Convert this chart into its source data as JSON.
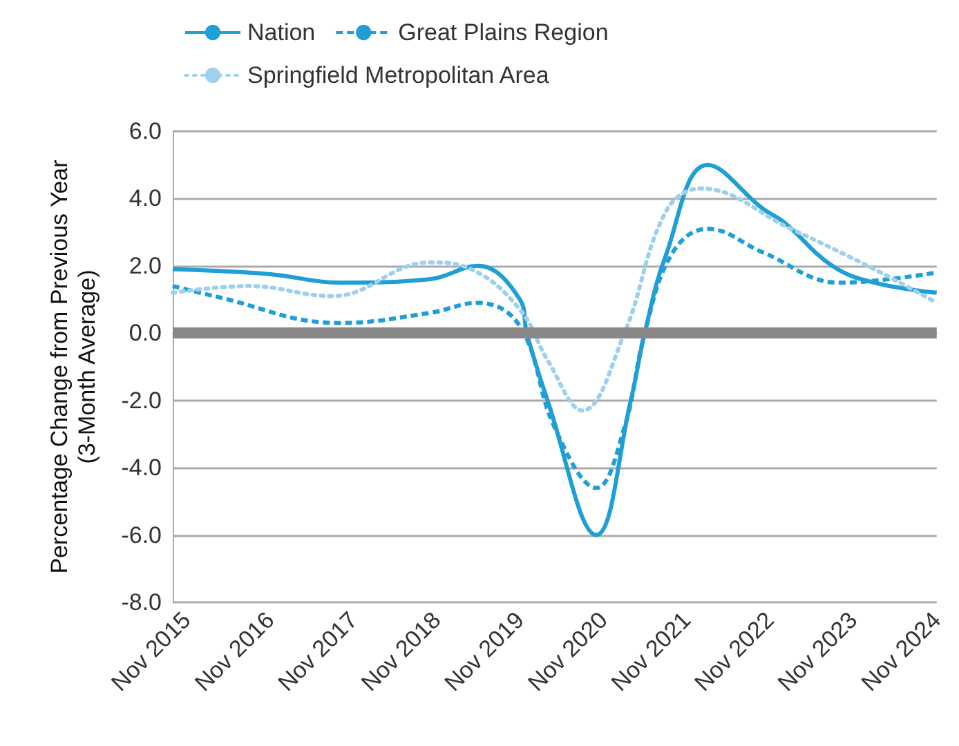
{
  "chart_data": {
    "type": "line",
    "ylabel": "Percentage Change from Previous Year\n(3-Month Average)",
    "xlim": [
      "2015-09",
      "2024-11"
    ],
    "xticks": [
      {
        "value": "2015-11",
        "label": "Nov 2015"
      },
      {
        "value": "2016-11",
        "label": "Nov 2016"
      },
      {
        "value": "2017-11",
        "label": "Nov 2017"
      },
      {
        "value": "2018-11",
        "label": "Nov 2018"
      },
      {
        "value": "2019-11",
        "label": "Nov 2019"
      },
      {
        "value": "2020-11",
        "label": "Nov 2020"
      },
      {
        "value": "2021-11",
        "label": "Nov 2021"
      },
      {
        "value": "2022-11",
        "label": "Nov 2022"
      },
      {
        "value": "2023-11",
        "label": "Nov 2023"
      },
      {
        "value": "2024-11",
        "label": "Nov 2024"
      }
    ],
    "ylim": [
      -8,
      6
    ],
    "yticks": [
      {
        "value": -8,
        "label": "-8.0"
      },
      {
        "value": -6,
        "label": "-6.0"
      },
      {
        "value": -4,
        "label": "-4.0"
      },
      {
        "value": -2,
        "label": "-2.0"
      },
      {
        "value": 0,
        "label": "0.0"
      },
      {
        "value": 2,
        "label": "2.0"
      },
      {
        "value": 4,
        "label": "4.0"
      },
      {
        "value": 6,
        "label": "6.0"
      }
    ],
    "grid": "y",
    "legend": "top",
    "marker": "none",
    "ref_lines": [
      {
        "axis": "y",
        "value": 0,
        "color": "#888888"
      }
    ],
    "series": [
      {
        "name": "Nation",
        "color": "#1f9fd5",
        "line_style": "solid",
        "x": [
          "2015-09",
          "2016-11",
          "2017-09",
          "2018-10",
          "2019-05",
          "2019-11",
          "2019-12",
          "2020-03",
          "2020-10",
          "2021-03",
          "2021-05",
          "2021-08",
          "2022-02",
          "2022-10",
          "2023-01",
          "2023-08",
          "2024-02",
          "2024-11"
        ],
        "values": [
          1.9,
          1.75,
          1.5,
          1.6,
          2.0,
          1.0,
          0.0,
          -2.0,
          -6.0,
          -2.0,
          0.0,
          2.3,
          5.0,
          3.7,
          3.3,
          2.0,
          1.5,
          1.2
        ]
      },
      {
        "name": "Great Plains Region",
        "color": "#1f9fd5",
        "line_style": "dashed",
        "x": [
          "2015-09",
          "2016-03",
          "2017-09",
          "2018-10",
          "2019-05",
          "2019-11",
          "2020-04",
          "2020-10",
          "2021-02",
          "2021-05",
          "2021-09",
          "2022-02",
          "2022-10",
          "2023-09",
          "2024-04",
          "2024-11"
        ],
        "values": [
          1.4,
          1.1,
          0.3,
          0.6,
          0.9,
          0.2,
          -2.8,
          -4.6,
          -2.8,
          0.0,
          2.4,
          3.1,
          2.4,
          1.5,
          1.6,
          1.8
        ]
      },
      {
        "name": "Springfield Metropolitan Area",
        "color": "#9fd0ec",
        "line_style": "dotted",
        "x": [
          "2015-09",
          "2016-08",
          "2017-08",
          "2018-10",
          "2019-04",
          "2019-11",
          "2020-03",
          "2020-08",
          "2021-02",
          "2021-08",
          "2022-01",
          "2023-02",
          "2024-02",
          "2024-11"
        ],
        "values": [
          1.2,
          1.4,
          1.1,
          2.1,
          1.9,
          0.7,
          -0.8,
          -2.3,
          0.0,
          3.6,
          4.3,
          3.1,
          1.9,
          0.9
        ]
      }
    ]
  }
}
